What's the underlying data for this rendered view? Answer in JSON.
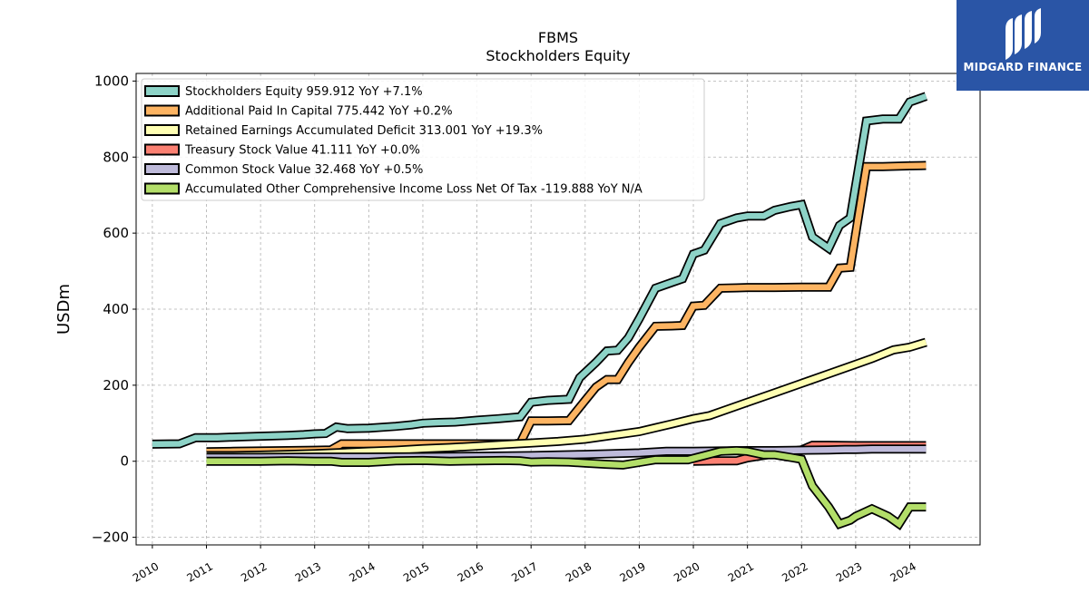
{
  "title": "FBMS",
  "subtitle": "Stockholders  Equity",
  "logo": {
    "text": "MIDGARD FINANCE",
    "background": "#2a55a6"
  },
  "chart_data": {
    "type": "line",
    "title": "FBMS",
    "subtitle": "Stockholders  Equity",
    "xlabel": "",
    "ylabel": "USDm",
    "xlim": [
      2009.7,
      2025.3
    ],
    "ylim": [
      -220,
      1020
    ],
    "x_ticks": [
      2010,
      2011,
      2012,
      2013,
      2014,
      2015,
      2016,
      2017,
      2018,
      2019,
      2020,
      2021,
      2022,
      2023,
      2024
    ],
    "y_ticks": [
      -200,
      0,
      200,
      400,
      600,
      800,
      1000
    ],
    "y_tick_labels": [
      "−200",
      "0",
      "200",
      "400",
      "600",
      "800",
      "1000"
    ],
    "grid": true,
    "legend_position": "upper-left",
    "series": [
      {
        "name": "Stockholders Equity",
        "legend": "Stockholders Equity  959.912 YoY +7.1%",
        "color": "#8dd3c7",
        "points": [
          [
            2010.0,
            45
          ],
          [
            2010.5,
            46
          ],
          [
            2010.8,
            62
          ],
          [
            2011.2,
            62
          ],
          [
            2011.6,
            64
          ],
          [
            2012.0,
            66
          ],
          [
            2012.5,
            68
          ],
          [
            2012.8,
            70
          ],
          [
            2013.0,
            72
          ],
          [
            2013.2,
            73
          ],
          [
            2013.4,
            90
          ],
          [
            2013.6,
            86
          ],
          [
            2014.0,
            87
          ],
          [
            2014.5,
            92
          ],
          [
            2014.8,
            96
          ],
          [
            2015.0,
            100
          ],
          [
            2015.3,
            102
          ],
          [
            2015.6,
            103
          ],
          [
            2016.0,
            108
          ],
          [
            2016.4,
            112
          ],
          [
            2016.8,
            117
          ],
          [
            2017.0,
            155
          ],
          [
            2017.3,
            160
          ],
          [
            2017.7,
            163
          ],
          [
            2017.9,
            220
          ],
          [
            2018.2,
            260
          ],
          [
            2018.4,
            290
          ],
          [
            2018.6,
            292
          ],
          [
            2018.8,
            325
          ],
          [
            2019.0,
            375
          ],
          [
            2019.3,
            455
          ],
          [
            2019.6,
            470
          ],
          [
            2019.8,
            480
          ],
          [
            2020.0,
            545
          ],
          [
            2020.2,
            555
          ],
          [
            2020.5,
            625
          ],
          [
            2020.8,
            640
          ],
          [
            2021.0,
            645
          ],
          [
            2021.3,
            645
          ],
          [
            2021.5,
            660
          ],
          [
            2021.8,
            670
          ],
          [
            2022.0,
            675
          ],
          [
            2022.2,
            590
          ],
          [
            2022.5,
            560
          ],
          [
            2022.7,
            620
          ],
          [
            2022.9,
            640
          ],
          [
            2023.2,
            895
          ],
          [
            2023.5,
            900
          ],
          [
            2023.8,
            900
          ],
          [
            2024.0,
            945
          ],
          [
            2024.3,
            960
          ]
        ]
      },
      {
        "name": "Additional Paid In Capital",
        "legend": "Additional Paid In Capital  775.442 YoY +0.2%",
        "color": "#fdb462",
        "points": [
          [
            2011.0,
            25
          ],
          [
            2011.5,
            26
          ],
          [
            2012.0,
            27
          ],
          [
            2012.5,
            28
          ],
          [
            2013.0,
            29
          ],
          [
            2013.3,
            30
          ],
          [
            2013.5,
            46
          ],
          [
            2014.0,
            46
          ],
          [
            2014.5,
            46
          ],
          [
            2015.0,
            46
          ],
          [
            2015.5,
            46
          ],
          [
            2016.0,
            46
          ],
          [
            2016.7,
            46
          ],
          [
            2016.8,
            48
          ],
          [
            2017.0,
            106
          ],
          [
            2017.3,
            106
          ],
          [
            2017.7,
            107
          ],
          [
            2018.0,
            160
          ],
          [
            2018.2,
            195
          ],
          [
            2018.4,
            215
          ],
          [
            2018.6,
            215
          ],
          [
            2018.8,
            260
          ],
          [
            2019.0,
            300
          ],
          [
            2019.3,
            355
          ],
          [
            2019.6,
            356
          ],
          [
            2019.8,
            357
          ],
          [
            2020.0,
            408
          ],
          [
            2020.2,
            410
          ],
          [
            2020.5,
            455
          ],
          [
            2020.8,
            456
          ],
          [
            2021.0,
            457
          ],
          [
            2021.5,
            457
          ],
          [
            2022.0,
            458
          ],
          [
            2022.5,
            458
          ],
          [
            2022.7,
            508
          ],
          [
            2022.9,
            510
          ],
          [
            2023.2,
            775
          ],
          [
            2023.5,
            775
          ],
          [
            2024.0,
            777
          ],
          [
            2024.3,
            778
          ]
        ]
      },
      {
        "name": "Retained Earnings Accumulated Deficit",
        "legend": "Retained Earnings Accumulated Deficit  313.001 YoY +19.3%",
        "color": "#ffffb3",
        "points": [
          [
            2011.0,
            15
          ],
          [
            2011.5,
            15
          ],
          [
            2012.0,
            16
          ],
          [
            2012.5,
            18
          ],
          [
            2013.0,
            20
          ],
          [
            2013.5,
            23
          ],
          [
            2014.0,
            26
          ],
          [
            2014.5,
            29
          ],
          [
            2015.0,
            33
          ],
          [
            2015.5,
            36
          ],
          [
            2016.0,
            40
          ],
          [
            2016.5,
            44
          ],
          [
            2017.0,
            48
          ],
          [
            2017.5,
            52
          ],
          [
            2018.0,
            58
          ],
          [
            2018.5,
            68
          ],
          [
            2019.0,
            78
          ],
          [
            2019.3,
            88
          ],
          [
            2019.6,
            98
          ],
          [
            2020.0,
            112
          ],
          [
            2020.3,
            120
          ],
          [
            2020.5,
            130
          ],
          [
            2021.0,
            155
          ],
          [
            2021.5,
            180
          ],
          [
            2022.0,
            205
          ],
          [
            2022.5,
            230
          ],
          [
            2023.0,
            255
          ],
          [
            2023.3,
            270
          ],
          [
            2023.7,
            293
          ],
          [
            2024.0,
            300
          ],
          [
            2024.3,
            313
          ]
        ]
      },
      {
        "name": "Treasury Stock Value",
        "legend": "Treasury Stock Value  41.111 YoY +0.0%",
        "color": "#fb8072",
        "points": [
          [
            2020.0,
            0
          ],
          [
            2020.5,
            1
          ],
          [
            2020.8,
            1
          ],
          [
            2021.0,
            9
          ],
          [
            2021.5,
            20
          ],
          [
            2022.0,
            30
          ],
          [
            2022.2,
            42
          ],
          [
            2022.5,
            42
          ],
          [
            2023.0,
            41
          ],
          [
            2023.5,
            41
          ],
          [
            2024.0,
            41
          ],
          [
            2024.3,
            41
          ]
        ]
      },
      {
        "name": "Common Stock Value",
        "legend": "Common Stock Value  32.468 YoY +0.5%",
        "color": "#bebada",
        "points": [
          [
            2011.0,
            10
          ],
          [
            2012.0,
            10
          ],
          [
            2013.0,
            11
          ],
          [
            2014.0,
            11
          ],
          [
            2015.0,
            12
          ],
          [
            2016.0,
            13
          ],
          [
            2017.0,
            15
          ],
          [
            2018.0,
            18
          ],
          [
            2019.0,
            22
          ],
          [
            2019.5,
            26
          ],
          [
            2020.0,
            26
          ],
          [
            2020.5,
            27
          ],
          [
            2021.0,
            28
          ],
          [
            2021.5,
            28
          ],
          [
            2022.0,
            29
          ],
          [
            2022.5,
            30
          ],
          [
            2022.8,
            31
          ],
          [
            2023.0,
            31
          ],
          [
            2023.3,
            32
          ],
          [
            2024.0,
            32
          ],
          [
            2024.3,
            32
          ]
        ]
      },
      {
        "name": "Accumulated Other Comprehensive Income Loss Net Of Tax",
        "legend": "Accumulated Other Comprehensive Income Loss Net Of Tax  -119.888 YoY N/A",
        "color": "#b3de69",
        "points": [
          [
            2011.0,
            0
          ],
          [
            2011.5,
            0
          ],
          [
            2012.0,
            0
          ],
          [
            2012.5,
            1
          ],
          [
            2013.0,
            0
          ],
          [
            2013.3,
            0
          ],
          [
            2013.5,
            -3
          ],
          [
            2014.0,
            -3
          ],
          [
            2014.5,
            1
          ],
          [
            2015.0,
            2
          ],
          [
            2015.5,
            0
          ],
          [
            2016.0,
            1
          ],
          [
            2016.5,
            2
          ],
          [
            2016.8,
            1
          ],
          [
            2017.0,
            -2
          ],
          [
            2017.3,
            -1
          ],
          [
            2017.7,
            -2
          ],
          [
            2018.0,
            -5
          ],
          [
            2018.4,
            -8
          ],
          [
            2018.7,
            -10
          ],
          [
            2019.0,
            -3
          ],
          [
            2019.3,
            4
          ],
          [
            2019.6,
            4
          ],
          [
            2019.9,
            4
          ],
          [
            2020.2,
            15
          ],
          [
            2020.5,
            26
          ],
          [
            2020.8,
            28
          ],
          [
            2021.0,
            26
          ],
          [
            2021.3,
            17
          ],
          [
            2021.5,
            17
          ],
          [
            2021.8,
            10
          ],
          [
            2022.0,
            5
          ],
          [
            2022.2,
            -65
          ],
          [
            2022.5,
            -120
          ],
          [
            2022.7,
            -165
          ],
          [
            2022.9,
            -155
          ],
          [
            2023.0,
            -145
          ],
          [
            2023.3,
            -125
          ],
          [
            2023.6,
            -145
          ],
          [
            2023.8,
            -165
          ],
          [
            2024.0,
            -120
          ],
          [
            2024.3,
            -120
          ]
        ]
      }
    ]
  }
}
